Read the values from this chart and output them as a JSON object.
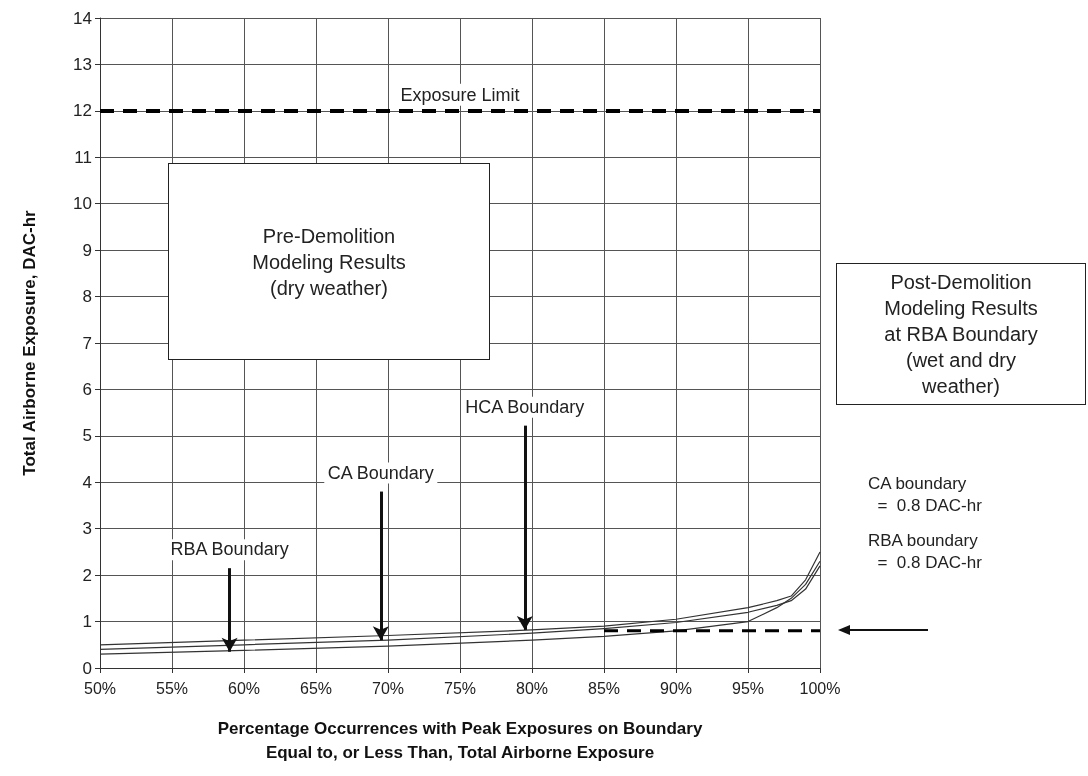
{
  "chart_data": {
    "type": "line",
    "xlabel": "Percentage Occurrences with Peak Exposures on Boundary\nEqual to, or Less Than, Total Airborne Exposure",
    "ylabel": "Total Airborne Exposure, DAC-hr",
    "x": [
      50,
      60,
      70,
      80,
      85,
      90,
      95,
      97,
      98,
      99,
      100
    ],
    "series": [
      {
        "color": "#333333",
        "values": [
          0.3,
          0.38,
          0.47,
          0.6,
          0.68,
          0.8,
          1.0,
          1.3,
          1.5,
          1.8,
          2.3
        ]
      },
      {
        "color": "#333333",
        "values": [
          0.4,
          0.5,
          0.6,
          0.75,
          0.85,
          0.98,
          1.2,
          1.35,
          1.45,
          1.7,
          2.2
        ]
      },
      {
        "color": "#333333",
        "values": [
          0.5,
          0.6,
          0.7,
          0.82,
          0.9,
          1.05,
          1.3,
          1.45,
          1.55,
          1.9,
          2.5
        ]
      },
      {
        "color": "#000000",
        "x": [
          85,
          100
        ],
        "values": [
          0.8,
          0.8
        ],
        "line_style": "dashed"
      }
    ],
    "xlim": [
      50,
      100
    ],
    "xticks": [
      {
        "value": 50,
        "label": "50%"
      },
      {
        "value": 55,
        "label": "55%"
      },
      {
        "value": 60,
        "label": "60%"
      },
      {
        "value": 65,
        "label": "65%"
      },
      {
        "value": 70,
        "label": "70%"
      },
      {
        "value": 75,
        "label": "75%"
      },
      {
        "value": 80,
        "label": "80%"
      },
      {
        "value": 85,
        "label": "85%"
      },
      {
        "value": 90,
        "label": "90%"
      },
      {
        "value": 95,
        "label": "95%"
      },
      {
        "value": 100,
        "label": "100%"
      }
    ],
    "ylim": [
      0,
      14
    ],
    "yticks": [
      0,
      1,
      2,
      3,
      4,
      5,
      6,
      7,
      8,
      9,
      10,
      11,
      12,
      13,
      14
    ],
    "grid": true,
    "marker": "none",
    "line_style": "solid",
    "ref_lines": [
      {
        "axis": "y",
        "value": 12,
        "label": "Exposure Limit",
        "color": "#000000",
        "line_style": "dashed"
      }
    ],
    "annotations": [
      "Pre-Demolition\nModeling Results\n(dry weather)",
      "Post-Demolition\nModeling Results\nat RBA Boundary\n(wet and dry\nweather)",
      "CA boundary\n  =  0.8 DAC-hr",
      "RBA boundary\n  =  0.8 DAC-hr",
      {
        "text": "RBA Boundary",
        "x": 59,
        "y": 0.35
      },
      {
        "text": "CA Boundary",
        "x": 69.5,
        "y": 0.6
      },
      {
        "text": "HCA Boundary",
        "x": 79.5,
        "y": 0.82
      }
    ]
  }
}
